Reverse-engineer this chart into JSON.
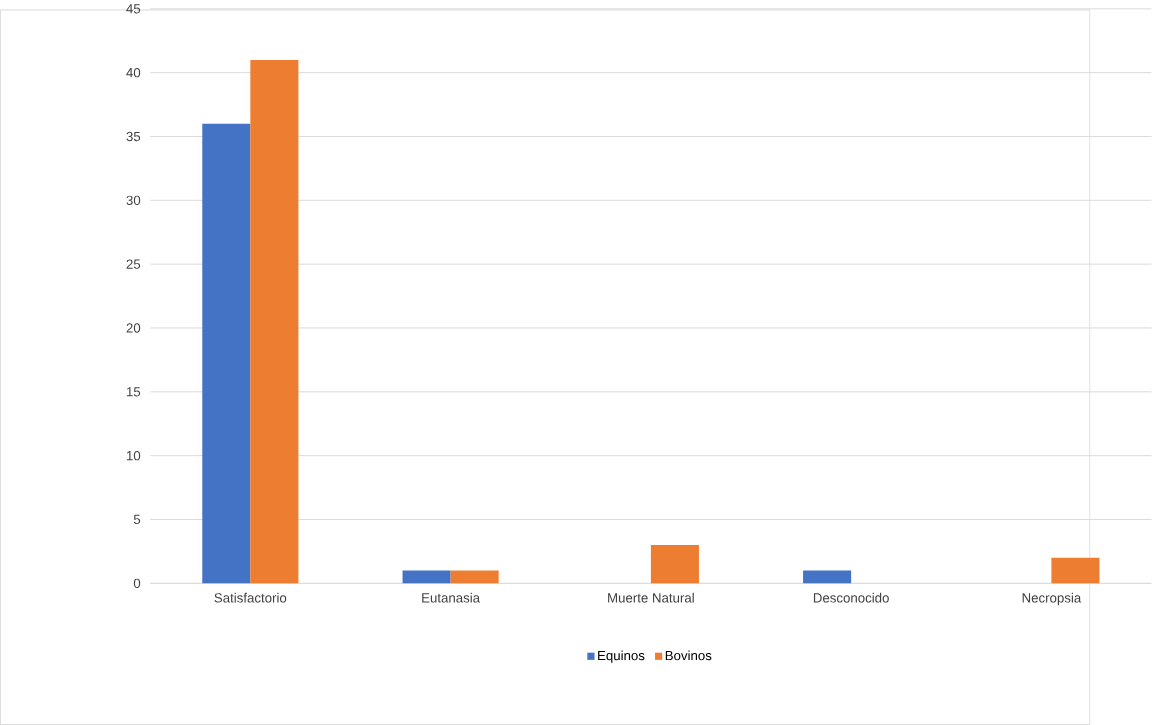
{
  "chart_data": {
    "type": "bar",
    "categories": [
      "Satisfactorio",
      "Eutanasia",
      "Muerte Natural",
      "Desconocido",
      "Necropsia"
    ],
    "series": [
      {
        "name": "Equinos",
        "color": "#4472c4",
        "values": [
          36,
          1,
          0,
          1,
          0
        ]
      },
      {
        "name": "Bovinos",
        "color": "#ed7d31",
        "values": [
          41,
          1,
          3,
          0,
          2
        ]
      }
    ],
    "ylim": [
      0,
      45
    ],
    "yticks": [
      0,
      5,
      10,
      15,
      20,
      25,
      30,
      35,
      40,
      45
    ],
    "grid": "y",
    "legend": "bottom"
  }
}
